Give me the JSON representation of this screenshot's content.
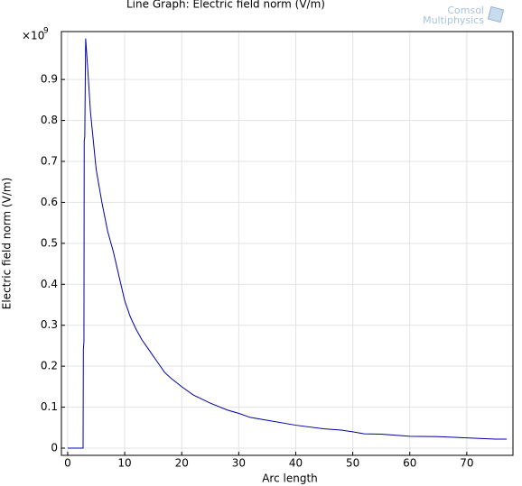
{
  "chart_data": {
    "type": "line",
    "title": "Line Graph: Electric field norm (V/m)",
    "logo": [
      "Comsol",
      "Multiphysics"
    ],
    "xlabel": "Arc length",
    "ylabel": "Electric field norm (V/m)",
    "y_multiplier": "×10",
    "y_multiplier_exponent": "9",
    "x": [
      0,
      2.7,
      2.75,
      2.85,
      2.9,
      3.0,
      3.15,
      3.5,
      4,
      5,
      6,
      7,
      8,
      9,
      10,
      11,
      12,
      13,
      14,
      15,
      16,
      17,
      18,
      20,
      22,
      25,
      28,
      30,
      32,
      35,
      40,
      45,
      48,
      50,
      52,
      55,
      60,
      65,
      70,
      75,
      77
    ],
    "series": [
      {
        "color": "#0000a8",
        "values": [
          0,
          0,
          0.24,
          0.26,
          0.75,
          0.76,
          1.0,
          0.93,
          0.82,
          0.68,
          0.6,
          0.53,
          0.48,
          0.42,
          0.36,
          0.32,
          0.29,
          0.265,
          0.245,
          0.225,
          0.205,
          0.185,
          0.172,
          0.15,
          0.13,
          0.11,
          0.093,
          0.085,
          0.075,
          0.068,
          0.056,
          0.047,
          0.044,
          0.04,
          0.035,
          0.034,
          0.029,
          0.028,
          0.025,
          0.022,
          0.022
        ]
      }
    ],
    "xlim": [
      -1.1,
      78.1
    ],
    "ylim": [
      -0.0176,
      1.017
    ],
    "xticks": [
      0,
      10,
      20,
      30,
      40,
      50,
      60,
      70
    ],
    "yticks": [
      0,
      0.1,
      0.2,
      0.3,
      0.4,
      0.5,
      0.6,
      0.7,
      0.8,
      0.9
    ],
    "grid": true
  }
}
